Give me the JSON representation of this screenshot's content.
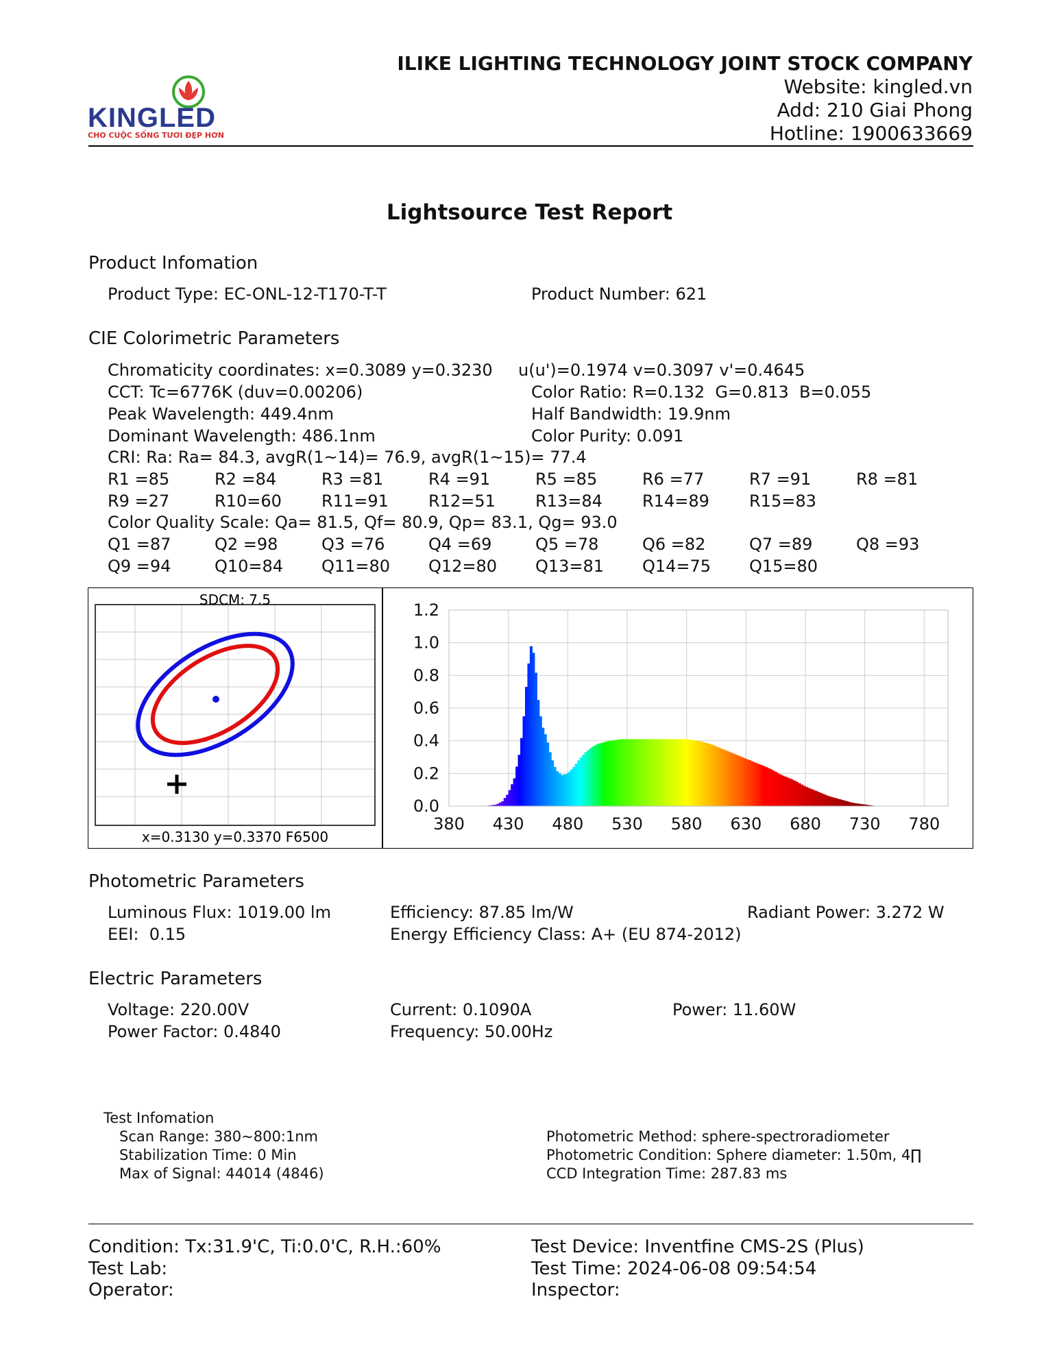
{
  "header": {
    "logo_text": "KINGLED",
    "logo_tagline": "CHO CUỘC SỐNG TƯƠI ĐẸP HƠN",
    "company": "ILIKE LIGHTING TECHNOLOGY JOINT STOCK COMPANY",
    "website": "Website: kingled.vn",
    "address": "Add: 210 Giai Phong",
    "hotline": "Hotline: 1900633669"
  },
  "title": "Lightsource Test Report",
  "product": {
    "heading": "Product Infomation",
    "type": "Product Type: EC-ONL-12-T170-T-T",
    "number": "Product Number: 621"
  },
  "cie": {
    "heading": "CIE Colorimetric Parameters",
    "chromaticity": "Chromaticity coordinates: x=0.3089 y=0.3230",
    "uv": "u(u')=0.1974 v=0.3097 v'=0.4645",
    "cct": "CCT: Tc=6776K (duv=0.00206)",
    "color_ratio": "Color Ratio: R=0.132  G=0.813  B=0.055",
    "peak": "Peak Wavelength: 449.4nm",
    "half_bandwidth": "Half Bandwidth: 19.9nm",
    "dominant": "Dominant Wavelength: 486.1nm",
    "purity": "Color Purity: 0.091",
    "cri": "CRI: Ra: Ra= 84.3, avgR(1~14)= 76.9, avgR(1~15)= 77.4",
    "r_row1": [
      "R1 =85",
      "R2 =84",
      "R3 =81",
      "R4 =91",
      "R5 =85",
      "R6 =77",
      "R7 =91",
      "R8 =81"
    ],
    "r_row2": [
      "R9 =27",
      "R10=60",
      "R11=91",
      "R12=51",
      "R13=84",
      "R14=89",
      "R15=83"
    ],
    "cqs": "Color Quality Scale: Qa= 81.5, Qf= 80.9, Qp= 83.1, Qg= 93.0",
    "q_row1": [
      "Q1 =87",
      "Q2 =98",
      "Q3 =76",
      "Q4 =69",
      "Q5 =78",
      "Q6 =82",
      "Q7 =89",
      "Q8 =93"
    ],
    "q_row2": [
      "Q9 =94",
      "Q10=84",
      "Q11=80",
      "Q12=80",
      "Q13=81",
      "Q14=75",
      "Q15=80"
    ]
  },
  "sdcm": {
    "title": "SDCM:   7.5",
    "footer": "x=0.3130 y=0.3370 F6500",
    "outer_color": "#1010e0",
    "inner_color": "#e01010"
  },
  "chart_data": {
    "type": "area",
    "xlabel": "",
    "ylabel": "",
    "xlim": [
      380,
      800
    ],
    "ylim": [
      0,
      1.2
    ],
    "x_ticks": [
      380,
      430,
      480,
      530,
      580,
      630,
      680,
      730,
      780
    ],
    "y_ticks": [
      "0.0",
      "0.2",
      "0.4",
      "0.6",
      "0.8",
      "1.0",
      "1.2"
    ],
    "grid": true,
    "series": [
      {
        "x": [
          380,
          400,
          410,
          420,
          425,
          430,
          435,
          440,
          443,
          446,
          449.4,
          452,
          455,
          458,
          462,
          466,
          470,
          475,
          480,
          485,
          490,
          495,
          500,
          505,
          510,
          515,
          520,
          525,
          530,
          540,
          550,
          560,
          570,
          580,
          590,
          600,
          610,
          620,
          630,
          640,
          650,
          660,
          670,
          680,
          690,
          700,
          710,
          720,
          730,
          740,
          750,
          760,
          780,
          800
        ],
        "y": [
          0.0,
          0.0,
          0.0,
          0.01,
          0.03,
          0.08,
          0.17,
          0.35,
          0.55,
          0.82,
          1.0,
          0.9,
          0.65,
          0.5,
          0.42,
          0.3,
          0.22,
          0.19,
          0.2,
          0.24,
          0.29,
          0.33,
          0.36,
          0.38,
          0.39,
          0.4,
          0.405,
          0.41,
          0.41,
          0.41,
          0.41,
          0.41,
          0.41,
          0.41,
          0.4,
          0.38,
          0.35,
          0.32,
          0.29,
          0.26,
          0.23,
          0.19,
          0.16,
          0.12,
          0.09,
          0.06,
          0.04,
          0.02,
          0.01,
          0.0,
          0.0,
          0.0,
          0.0,
          0.0
        ]
      }
    ]
  },
  "photometric": {
    "heading": "Photometric Parameters",
    "flux": "Luminous Flux: 1019.00 lm",
    "efficiency": "Efficiency: 87.85 lm/W",
    "radiant": "Radiant Power: 3.272 W",
    "eei": "EEI:  0.15",
    "energy_class": "Energy Efficiency Class: A+ (EU 874-2012)"
  },
  "electric": {
    "heading": "Electric Parameters",
    "voltage": "Voltage: 220.00V",
    "current": "Current: 0.1090A",
    "power": "Power: 11.60W",
    "power_factor": "Power Factor: 0.4840",
    "frequency": "Frequency: 50.00Hz"
  },
  "test_info": {
    "heading": "Test Infomation",
    "scan_range": "Scan Range: 380~800:1nm",
    "stabilization": "Stabilization Time: 0 Min",
    "max_signal": "Max of Signal: 44014 (4846)",
    "method": "Photometric Method: sphere-spectroradiometer",
    "condition": "Photometric Condition: Sphere diameter: 1.50m, 4∏",
    "ccd": "CCD Integration Time: 287.83 ms"
  },
  "footer": {
    "condition": "Condition: Tx:31.9'C, Ti:0.0'C, R.H.:60%",
    "test_lab": "Test Lab:",
    "operator": "Operator:",
    "device": "Test Device: Inventfine CMS-2S (Plus)",
    "test_time": "Test Time: 2024-06-08 09:54:54",
    "inspector": "Inspector:"
  }
}
